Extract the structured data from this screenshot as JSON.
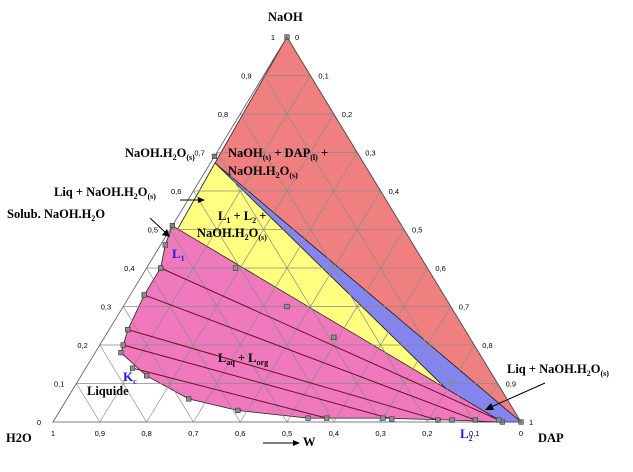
{
  "vertices": {
    "top": "NaOH",
    "left": "H2O",
    "right": "DAP"
  },
  "axis_label": "W",
  "ticks": [
    "0",
    "0,1",
    "0,2",
    "0,3",
    "0,4",
    "0,5",
    "0,6",
    "0,7",
    "0,8",
    "0,9",
    "1"
  ],
  "regions": {
    "liquid": "Liquide",
    "laq_lorg": {
      "base": "L",
      "sub1": "aq",
      "mid": " + L",
      "sub2": "org"
    },
    "three_phase": {
      "line1": "L",
      "line1_sub": "1",
      "line1_rest": " + L",
      "line1_sub2": "2",
      "line1_end": " +",
      "line2": "NaOH.H",
      "line2_sub": "2",
      "line2_rest": "O",
      "line2_sub2": "(s)"
    },
    "top_region": {
      "a": "NaOH",
      "a_sub": "(s)",
      "b": " + DAP",
      "b_sub": "(l)",
      "c": " +",
      "d": "NaOH.H",
      "d_sub": "2",
      "e": "O",
      "e_sub": "(s)"
    }
  },
  "points": {
    "L1": {
      "base": "L",
      "sub": "1"
    },
    "L2": {
      "base": "L",
      "sub": "2"
    },
    "Kc": {
      "base": "K",
      "sub": "c"
    }
  },
  "annotations": {
    "naoh_h2o": {
      "base": "NaOH.H",
      "sub": "2",
      "rest": "O",
      "sub2": "(s)"
    },
    "liq_naoh_left": {
      "base": "Liq + NaOH.H",
      "sub": "2",
      "rest": "O",
      "sub2": "(s)"
    },
    "solub": {
      "base": "Solub. NaOH.H",
      "sub": "2",
      "rest": "O"
    },
    "liq_naoh_right": {
      "base": "Liq + NaOH.H",
      "sub": "2",
      "rest": "O",
      "sub2": "(s)"
    }
  },
  "colors": {
    "top_region": "#f08080",
    "blue_region": "#8585f0",
    "yellow_region": "#ffff80",
    "pink_region": "#f078bd",
    "point_label": "#1d1de6"
  },
  "chart_data": {
    "type": "ternary",
    "components": [
      "H2O",
      "NaOH",
      "DAP"
    ],
    "points": {
      "NaOH.H2O(s)": {
        "H2O": 0.31,
        "NaOH": 0.69,
        "DAP": 0.0
      },
      "L1": {
        "H2O": 0.49,
        "NaOH": 0.51,
        "DAP": 0.0
      },
      "L2": {
        "H2O": 0.04,
        "NaOH": 0.0,
        "DAP": 0.96
      },
      "Kc": {
        "H2O": 0.765,
        "NaOH": 0.18,
        "DAP": 0.055
      }
    },
    "binodal": [
      {
        "NaOH": 0.51,
        "DAP": 0.0
      },
      {
        "NaOH": 0.46,
        "DAP": 0.01
      },
      {
        "NaOH": 0.4,
        "DAP": 0.03
      },
      {
        "NaOH": 0.33,
        "DAP": 0.03
      },
      {
        "NaOH": 0.24,
        "DAP": 0.04
      },
      {
        "NaOH": 0.18,
        "DAP": 0.055
      },
      {
        "NaOH": 0.12,
        "DAP": 0.14
      },
      {
        "NaOH": 0.06,
        "DAP": 0.26
      },
      {
        "NaOH": 0.03,
        "DAP": 0.38
      },
      {
        "NaOH": 0.01,
        "DAP": 0.54
      },
      {
        "NaOH": 0.01,
        "DAP": 0.7
      },
      {
        "NaOH": 0.005,
        "DAP": 0.85
      },
      {
        "NaOH": 0.0,
        "DAP": 0.96
      }
    ],
    "tie_lines": [
      [
        {
          "NaOH": 0.4,
          "DAP": 0.03
        },
        {
          "NaOH": 0.005,
          "DAP": 0.95
        }
      ],
      [
        {
          "NaOH": 0.33,
          "DAP": 0.03
        },
        {
          "NaOH": 0.005,
          "DAP": 0.9
        }
      ],
      [
        {
          "NaOH": 0.24,
          "DAP": 0.04
        },
        {
          "NaOH": 0.005,
          "DAP": 0.82
        }
      ],
      [
        {
          "NaOH": 0.2,
          "DAP": 0.05
        },
        {
          "NaOH": 0.008,
          "DAP": 0.72
        }
      ],
      [
        {
          "NaOH": 0.14,
          "DAP": 0.1
        },
        {
          "NaOH": 0.01,
          "DAP": 0.58
        }
      ]
    ],
    "upper_phase_points": [
      {
        "NaOH": 0.4,
        "DAP": 0.19
      },
      {
        "NaOH": 0.3,
        "DAP": 0.35
      },
      {
        "NaOH": 0.22,
        "DAP": 0.49
      }
    ],
    "ticks": [
      0,
      0.1,
      0.2,
      0.3,
      0.4,
      0.5,
      0.6,
      0.7,
      0.8,
      0.9,
      1
    ]
  }
}
